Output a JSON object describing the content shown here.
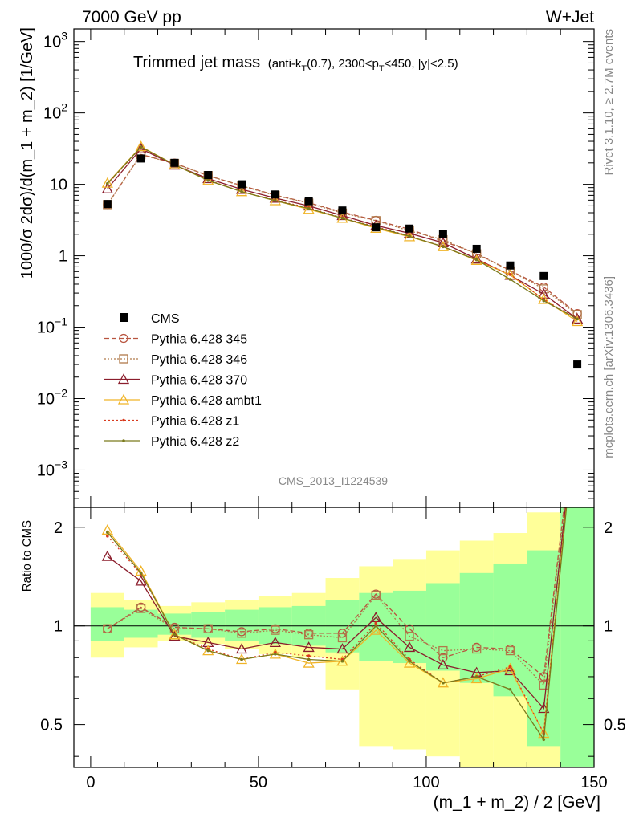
{
  "header": {
    "left": "7000 GeV pp",
    "right": "W+Jet"
  },
  "chart_data": {
    "type": "scatter",
    "title": "Trimmed jet mass",
    "title_cuts": {
      "pre_k": "(anti-k",
      "k_sub": "T",
      "mid": "(0.7), 2300<p",
      "p_sub": "T",
      "post": "<450, |y|<2.5)"
    },
    "side_text_top": "Rivet 3.1.10, ≥ 2.7M events",
    "side_text_bottom": "mcplots.cern.ch [arXiv:1306.3436]",
    "watermark": "CMS_2013_I1224539",
    "xlabel": "(m_1 + m_2) / 2 [GeV]",
    "ylabel": "1000/σ 2dσ)/d(m_1 + m_2) [1/GeV]",
    "ratio_ylabel": "Ratio to CMS",
    "xlim": [
      -5,
      150
    ],
    "ylim": [
      0.0003,
      1500
    ],
    "yscale": "log",
    "ratio_ylim": [
      0.37,
      2.3
    ],
    "ratio_yscale": "log",
    "x_ticks": [
      0,
      50,
      100,
      150
    ],
    "y_ticks": [
      {
        "v": 0.001,
        "base": "10",
        "exp": "−3"
      },
      {
        "v": 0.01,
        "base": "10",
        "exp": "−2"
      },
      {
        "v": 0.1,
        "base": "10",
        "exp": "−1"
      },
      {
        "v": 1,
        "base": "1",
        "exp": ""
      },
      {
        "v": 10,
        "base": "10",
        "exp": ""
      },
      {
        "v": 100,
        "base": "10",
        "exp": "2"
      },
      {
        "v": 1000,
        "base": "10",
        "exp": "3"
      }
    ],
    "ratio_ticks": [
      {
        "v": 0.5,
        "label": "0.5"
      },
      {
        "v": 1,
        "label": "1"
      },
      {
        "v": 2,
        "label": "2"
      }
    ],
    "x": [
      5,
      15,
      25,
      35,
      45,
      55,
      65,
      75,
      85,
      95,
      105,
      115,
      125,
      135,
      145
    ],
    "bin_edges": [
      0,
      10,
      20,
      30,
      40,
      50,
      60,
      70,
      80,
      90,
      100,
      110,
      120,
      130,
      140,
      150
    ],
    "cms": [
      5.3,
      23,
      20,
      13.5,
      10,
      7.2,
      5.8,
      4.3,
      2.5,
      2.4,
      2.0,
      1.25,
      0.73,
      0.52,
      0.03
    ],
    "band_inner": [
      [
        0.9,
        1.14
      ],
      [
        0.92,
        1.12
      ],
      [
        0.94,
        1.09
      ],
      [
        0.92,
        1.1
      ],
      [
        0.9,
        1.12
      ],
      [
        0.88,
        1.14
      ],
      [
        0.87,
        1.15
      ],
      [
        0.83,
        1.2
      ],
      [
        0.78,
        1.26
      ],
      [
        0.77,
        1.28
      ],
      [
        0.73,
        1.35
      ],
      [
        0.67,
        1.45
      ],
      [
        0.61,
        1.55
      ],
      [
        0.43,
        1.7
      ],
      [
        0.37,
        2.3
      ]
    ],
    "band_outer": [
      [
        0.8,
        1.26
      ],
      [
        0.86,
        1.2
      ],
      [
        0.9,
        1.15
      ],
      [
        0.88,
        1.18
      ],
      [
        0.85,
        1.2
      ],
      [
        0.82,
        1.23
      ],
      [
        0.8,
        1.26
      ],
      [
        0.64,
        1.4
      ],
      [
        0.43,
        1.52
      ],
      [
        0.42,
        1.6
      ],
      [
        0.4,
        1.7
      ],
      [
        0.37,
        1.82
      ],
      [
        0.37,
        1.92
      ],
      [
        0.37,
        2.22
      ],
      [
        0.37,
        2.3
      ]
    ],
    "series": [
      {
        "name": "Pythia 6.428 345",
        "color": "#b8543f",
        "dash": "6,3",
        "marker": "circle",
        "ratio": [
          0.98,
          1.14,
          0.99,
          0.98,
          0.96,
          0.98,
          0.95,
          0.95,
          1.25,
          0.98,
          0.8,
          0.86,
          0.85,
          0.7,
          5.0
        ]
      },
      {
        "name": "Pythia 6.428 346",
        "color": "#b07a4a",
        "dash": "2,2",
        "marker": "square",
        "ratio": [
          0.98,
          1.13,
          0.98,
          0.98,
          0.95,
          0.97,
          0.94,
          0.92,
          1.24,
          0.93,
          0.84,
          0.85,
          0.84,
          0.66,
          5.0
        ]
      },
      {
        "name": "Pythia 6.428 370",
        "color": "#8b1d2c",
        "dash": "",
        "marker": "triangle",
        "ratio": [
          1.63,
          1.37,
          0.93,
          0.89,
          0.85,
          0.89,
          0.86,
          0.85,
          1.06,
          0.86,
          0.76,
          0.72,
          0.73,
          0.56,
          5.0
        ]
      },
      {
        "name": "Pythia 6.428 ambt1",
        "color": "#f0b428",
        "dash": "",
        "marker": "triangle",
        "ratio": [
          1.96,
          1.47,
          0.94,
          0.84,
          0.79,
          0.82,
          0.77,
          0.78,
          0.97,
          0.77,
          0.67,
          0.69,
          0.74,
          0.47,
          5.0
        ]
      },
      {
        "name": "Pythia 6.428 z1",
        "color": "#d83a1e",
        "dash": "2,3",
        "marker": "dot",
        "ratio": [
          1.88,
          1.44,
          0.94,
          0.85,
          0.79,
          0.83,
          0.81,
          0.79,
          1.02,
          0.79,
          0.67,
          0.7,
          0.75,
          0.47,
          5.0
        ]
      },
      {
        "name": "Pythia 6.428 z2",
        "color": "#7b7a1c",
        "dash": "",
        "marker": "dot",
        "ratio": [
          1.93,
          1.45,
          0.94,
          0.84,
          0.79,
          0.82,
          0.79,
          0.78,
          1.0,
          0.78,
          0.67,
          0.7,
          0.64,
          0.45,
          5.0
        ]
      }
    ],
    "legend_data_label": "CMS",
    "legend_position": "left-middle",
    "grid": false
  }
}
